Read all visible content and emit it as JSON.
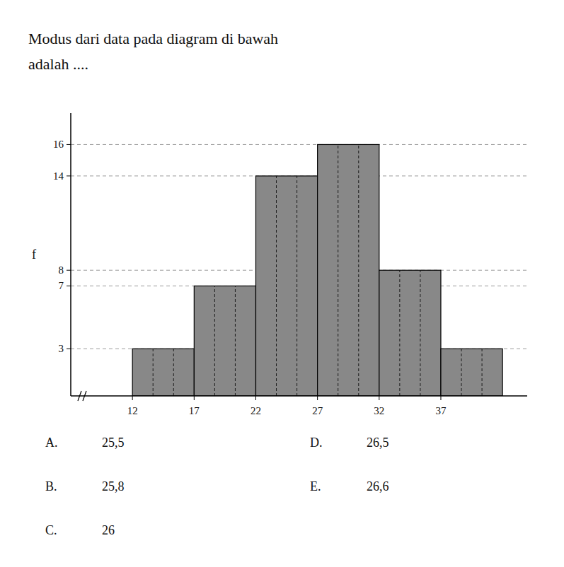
{
  "chart_data": {
    "type": "histogram",
    "title": "Modus dari data pada diagram di bawah",
    "subtitle": "adalah ....",
    "bins": [
      12,
      17,
      22,
      27,
      32,
      37,
      42
    ],
    "values": [
      3,
      7,
      14,
      16,
      8,
      3
    ],
    "color": "#888888",
    "xlim": [
      7,
      44
    ],
    "xticks": [
      12,
      17,
      22,
      27,
      32,
      37
    ],
    "ylim": [
      0,
      18
    ],
    "yticks": [
      3,
      7,
      8,
      14,
      16
    ],
    "y_label": "f",
    "grid": true,
    "annotations": [
      [
        "A.",
        "25,5"
      ],
      [
        "B.",
        "25,8"
      ],
      [
        "C.",
        "26"
      ],
      [
        "D.",
        "26,5"
      ],
      [
        "E.",
        "26,6"
      ]
    ]
  }
}
